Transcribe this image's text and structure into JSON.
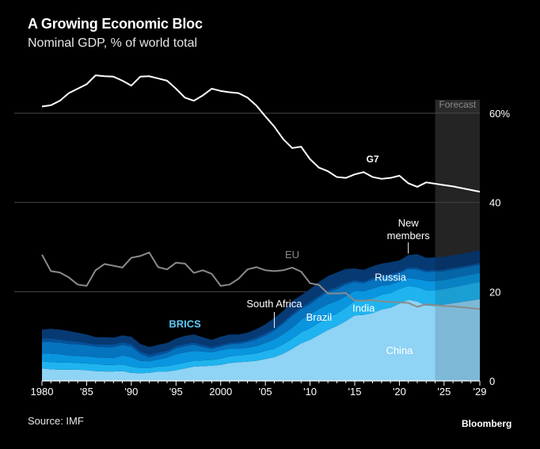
{
  "header": {
    "title": "A Growing Economic Bloc",
    "subtitle": "Nominal GDP, % of world total"
  },
  "footer": {
    "source": "Source: IMF",
    "brand": "Bloomberg"
  },
  "chart_data": {
    "type": "area",
    "title": "A Growing Economic Bloc",
    "subtitle": "Nominal GDP, % of world total",
    "xlabel": "",
    "ylabel": "",
    "xlim": [
      1980,
      2029
    ],
    "ylim": [
      0,
      60
    ],
    "x_tick_values": [
      1980,
      1985,
      1990,
      1995,
      2000,
      2005,
      2010,
      2015,
      2020,
      2025,
      2029
    ],
    "x_tick_labels": [
      "1980",
      "'85",
      "'90",
      "'95",
      "2000",
      "'05",
      "'10",
      "'15",
      "'20",
      "'25",
      "'29"
    ],
    "y_tick_values": [
      0,
      20,
      40,
      60
    ],
    "y_tick_labels": [
      "0",
      "20",
      "40",
      "60%"
    ],
    "grid": "horizontal",
    "forecast": {
      "label": "Forecast",
      "start": 2024,
      "end": 2029
    },
    "x": [
      1980,
      1981,
      1982,
      1983,
      1984,
      1985,
      1986,
      1987,
      1988,
      1989,
      1990,
      1991,
      1992,
      1993,
      1994,
      1995,
      1996,
      1997,
      1998,
      1999,
      2000,
      2001,
      2002,
      2003,
      2004,
      2005,
      2006,
      2007,
      2008,
      2009,
      2010,
      2011,
      2012,
      2013,
      2014,
      2015,
      2016,
      2017,
      2018,
      2019,
      2020,
      2021,
      2022,
      2023,
      2024,
      2025,
      2026,
      2027,
      2028,
      2029
    ],
    "stacked_series": [
      {
        "name": "China",
        "color": "#8fd3f5",
        "values": [
          2.8,
          2.6,
          2.5,
          2.5,
          2.5,
          2.4,
          2.2,
          2.1,
          2.1,
          2.2,
          1.8,
          1.7,
          1.8,
          2.1,
          2.1,
          2.4,
          2.8,
          3.2,
          3.3,
          3.4,
          3.6,
          4.0,
          4.2,
          4.3,
          4.5,
          4.9,
          5.3,
          6.1,
          7.2,
          8.4,
          9.2,
          10.3,
          11.4,
          12.3,
          13.4,
          14.7,
          14.8,
          15.2,
          16.0,
          16.4,
          17.3,
          18.2,
          17.8,
          16.9,
          16.8,
          17.1,
          17.4,
          17.7,
          18.0,
          18.3
        ]
      },
      {
        "name": "India",
        "color": "#1fb4ef",
        "values": [
          1.6,
          1.6,
          1.6,
          1.6,
          1.5,
          1.5,
          1.6,
          1.5,
          1.5,
          1.5,
          1.4,
          1.2,
          1.1,
          1.1,
          1.2,
          1.3,
          1.3,
          1.3,
          1.3,
          1.3,
          1.4,
          1.5,
          1.5,
          1.6,
          1.7,
          1.8,
          1.9,
          2.1,
          2.2,
          2.5,
          2.6,
          2.7,
          2.8,
          2.8,
          3.0,
          3.2,
          3.3,
          3.3,
          3.3,
          3.3,
          3.3,
          3.1,
          3.2,
          3.4,
          3.5,
          3.5,
          3.6,
          3.7,
          3.8,
          3.9
        ]
      },
      {
        "name": "Brazil",
        "color": "#0a95df",
        "values": [
          1.8,
          1.9,
          1.9,
          1.6,
          1.6,
          1.6,
          1.5,
          1.6,
          1.5,
          2.0,
          2.1,
          1.6,
          1.5,
          1.6,
          1.9,
          2.3,
          2.3,
          2.2,
          2.0,
          1.7,
          1.9,
          1.7,
          1.5,
          1.5,
          1.6,
          1.8,
          2.1,
          2.3,
          2.5,
          2.8,
          3.1,
          3.1,
          3.0,
          2.8,
          2.6,
          2.3,
          2.0,
          2.2,
          2.0,
          1.9,
          1.7,
          1.8,
          1.8,
          2.1,
          2.1,
          2.0,
          2.0,
          2.0,
          2.0,
          2.0
        ]
      },
      {
        "name": "Russia",
        "color": "#0673be",
        "values": [
          2.5,
          2.6,
          2.6,
          2.6,
          2.6,
          2.5,
          2.4,
          2.4,
          2.5,
          2.4,
          2.4,
          1.6,
          0.9,
          1.0,
          1.1,
          1.3,
          1.4,
          1.4,
          1.0,
          0.8,
          0.8,
          1.0,
          1.1,
          1.3,
          1.5,
          1.7,
          2.0,
          2.3,
          2.7,
          2.4,
          2.3,
          2.6,
          2.7,
          2.7,
          2.6,
          2.0,
          1.8,
          2.0,
          2.0,
          2.0,
          1.9,
          2.0,
          2.2,
          2.0,
          2.1,
          2.0,
          2.0,
          1.9,
          1.9,
          1.9
        ]
      },
      {
        "name": "South Africa",
        "color": "#06519a",
        "values": [
          0.8,
          0.8,
          0.7,
          0.7,
          0.6,
          0.5,
          0.5,
          0.6,
          0.6,
          0.6,
          0.6,
          0.6,
          0.6,
          0.6,
          0.5,
          0.5,
          0.5,
          0.5,
          0.5,
          0.4,
          0.4,
          0.4,
          0.4,
          0.4,
          0.5,
          0.5,
          0.5,
          0.5,
          0.5,
          0.5,
          0.6,
          0.5,
          0.5,
          0.5,
          0.5,
          0.4,
          0.4,
          0.4,
          0.4,
          0.4,
          0.4,
          0.4,
          0.4,
          0.4,
          0.4,
          0.4,
          0.4,
          0.4,
          0.4,
          0.4
        ]
      },
      {
        "name": "New members",
        "color": "#073a73",
        "values": [
          2.0,
          2.2,
          2.2,
          2.2,
          2.0,
          1.9,
          1.6,
          1.6,
          1.5,
          1.5,
          1.6,
          1.6,
          1.7,
          1.7,
          1.7,
          1.7,
          1.8,
          1.8,
          1.7,
          1.6,
          1.8,
          1.8,
          1.7,
          1.7,
          1.8,
          2.0,
          2.3,
          2.4,
          2.8,
          2.6,
          2.8,
          3.0,
          3.1,
          3.2,
          3.0,
          2.6,
          2.6,
          2.6,
          2.6,
          2.6,
          2.4,
          2.7,
          3.0,
          2.8,
          2.8,
          2.8,
          2.8,
          2.8,
          2.8,
          2.8
        ]
      }
    ],
    "bloc_label": "BRICS",
    "lines": [
      {
        "name": "G7",
        "color": "#ffffff",
        "values": [
          61.5,
          61.8,
          62.8,
          64.5,
          65.5,
          66.5,
          68.5,
          68.3,
          68.2,
          67.3,
          66.2,
          68.2,
          68.3,
          67.8,
          67.3,
          65.5,
          63.5,
          62.8,
          64.0,
          65.5,
          65.0,
          64.7,
          64.5,
          63.5,
          61.7,
          59.3,
          57.0,
          54.2,
          52.2,
          52.5,
          49.7,
          47.8,
          47.0,
          45.7,
          45.5,
          46.3,
          46.8,
          45.7,
          45.3,
          45.5,
          46.0,
          44.3,
          43.5,
          44.5,
          44.2,
          43.9,
          43.6,
          43.2,
          42.8,
          42.4
        ]
      },
      {
        "name": "EU",
        "color": "#8a8a8a",
        "values": [
          28.3,
          24.6,
          24.3,
          23.2,
          21.6,
          21.3,
          24.8,
          26.2,
          25.8,
          25.4,
          27.6,
          28.0,
          28.8,
          25.5,
          25.0,
          26.5,
          26.3,
          24.2,
          24.8,
          24.0,
          21.3,
          21.6,
          22.9,
          25.0,
          25.5,
          24.8,
          24.6,
          24.8,
          25.4,
          24.5,
          21.9,
          21.5,
          19.6,
          19.6,
          19.7,
          18.0,
          18.0,
          18.1,
          17.8,
          17.7,
          17.6,
          17.5,
          16.6,
          17.2,
          17.0,
          16.8,
          16.7,
          16.5,
          16.3,
          16.1
        ]
      }
    ],
    "annotations": [
      {
        "text": "G7",
        "x": 2017,
        "y": 49
      },
      {
        "text": "EU",
        "x": 2008,
        "y": 27.5
      },
      {
        "text": "BRICS",
        "x": 1996,
        "y": 12
      },
      {
        "text": "South Africa",
        "x": 2006,
        "y": 16.5
      },
      {
        "text": "Brazil",
        "x": 2011,
        "y": 13.5
      },
      {
        "text": "Russia",
        "x": 2019,
        "y": 22.5
      },
      {
        "text": "India",
        "x": 2016,
        "y": 15.5
      },
      {
        "text": "China",
        "x": 2020,
        "y": 6
      },
      {
        "text": "New members",
        "x": 2021,
        "y": 33
      }
    ]
  }
}
